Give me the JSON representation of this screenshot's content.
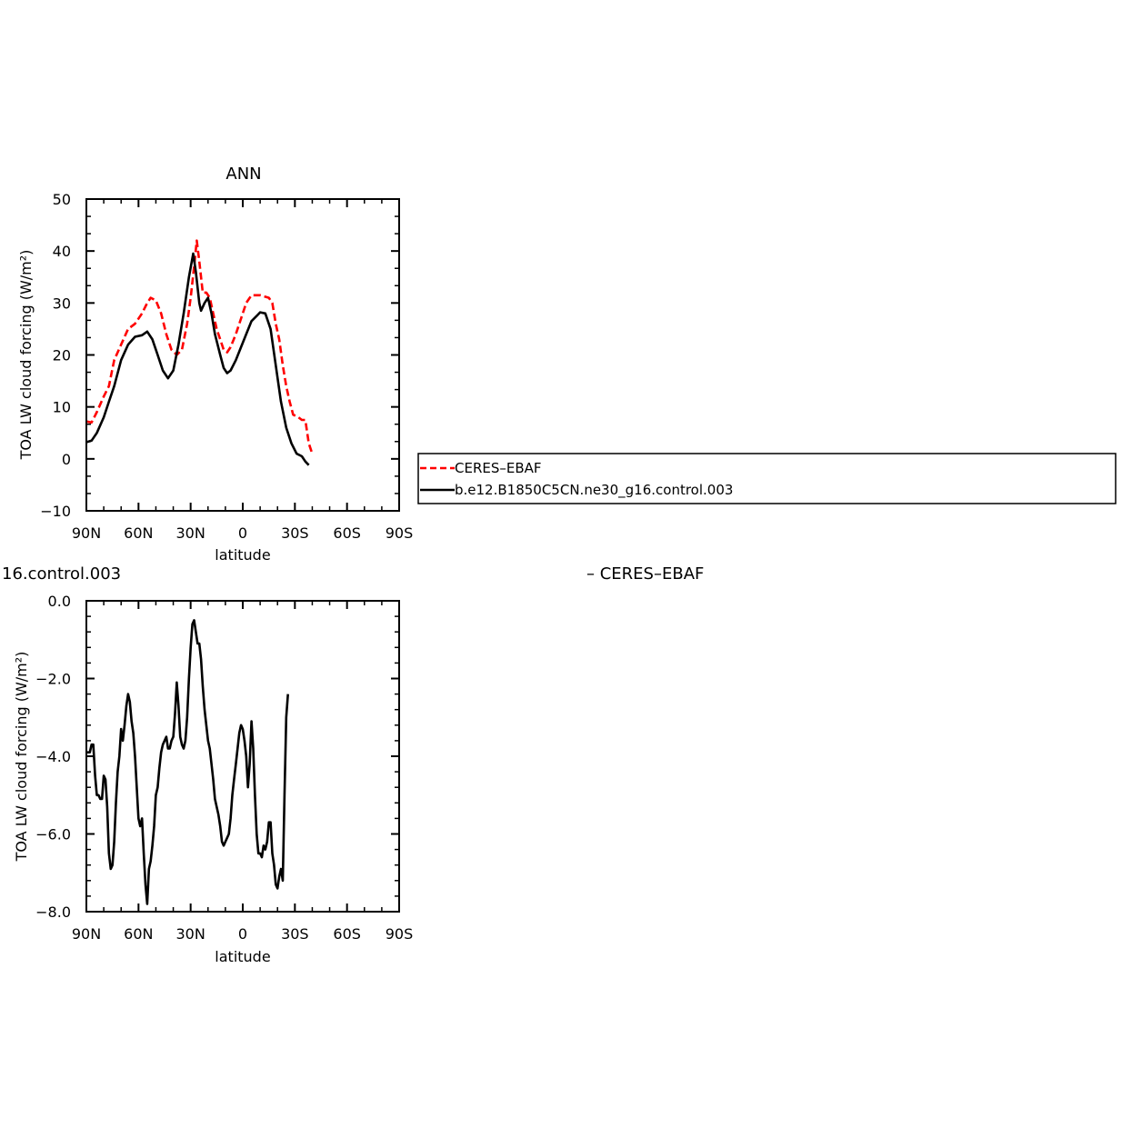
{
  "top_title": "ANN",
  "bottom_title_fragment": "16.control.003",
  "bottom_title_suffix": "– CERES–EBAF",
  "chart_data": [
    {
      "type": "line",
      "title": "ANN",
      "xlabel": "latitude",
      "ylabel": "TOA LW cloud forcing (W/m²)",
      "xlim": [
        90,
        -90
      ],
      "ylim": [
        -10,
        50
      ],
      "x_ticks": [
        90,
        60,
        30,
        0,
        -30,
        -60,
        -90
      ],
      "x_tick_labels": [
        "90N",
        "60N",
        "30N",
        "0",
        "30S",
        "60S",
        "90S"
      ],
      "y_ticks": [
        -10,
        0,
        10,
        20,
        30,
        40,
        50
      ],
      "y_tick_labels": [
        "−10",
        "0",
        "10",
        "20",
        "30",
        "40",
        "50"
      ],
      "grid": false,
      "legend": "right",
      "series": [
        {
          "name": "CERES–EBAF",
          "color": "#ff0000",
          "dash": "dashed",
          "points": [
            [
              90,
              7.2
            ],
            [
              87,
              7
            ],
            [
              84,
              9
            ],
            [
              80,
              12
            ],
            [
              77,
              14
            ],
            [
              74,
              19
            ],
            [
              70,
              22
            ],
            [
              66,
              25
            ],
            [
              62,
              26
            ],
            [
              58,
              28
            ],
            [
              55,
              30
            ],
            [
              53,
              31
            ],
            [
              50,
              30.5
            ],
            [
              47,
              28
            ],
            [
              44,
              24
            ],
            [
              41,
              21
            ],
            [
              38,
              20
            ],
            [
              35,
              21
            ],
            [
              32,
              26
            ],
            [
              30,
              31
            ],
            [
              28,
              37
            ],
            [
              26.5,
              42
            ],
            [
              25,
              38
            ],
            [
              23,
              32
            ],
            [
              21,
              32
            ],
            [
              19,
              31
            ],
            [
              17,
              28
            ],
            [
              15,
              25
            ],
            [
              13,
              23
            ],
            [
              11,
              21
            ],
            [
              9,
              20.5
            ],
            [
              7,
              21.5
            ],
            [
              4,
              24
            ],
            [
              1,
              27
            ],
            [
              -2,
              30
            ],
            [
              -5,
              31.5
            ],
            [
              -10,
              31.5
            ],
            [
              -15,
              31
            ],
            [
              -17,
              30
            ],
            [
              -19,
              26
            ],
            [
              -21,
              23
            ],
            [
              -23,
              18
            ],
            [
              -25,
              14
            ],
            [
              -27,
              11
            ],
            [
              -29,
              8.5
            ],
            [
              -32,
              8
            ],
            [
              -34,
              7.5
            ],
            [
              -36,
              7.5
            ],
            [
              -38,
              3
            ],
            [
              -40,
              1
            ]
          ]
        },
        {
          "name": "b.e12.B1850C5CN.ne30_g16.control.003",
          "color": "#000000",
          "dash": "solid",
          "points": [
            [
              90,
              3.2
            ],
            [
              87,
              3.5
            ],
            [
              84,
              5
            ],
            [
              80,
              8
            ],
            [
              77,
              11
            ],
            [
              74,
              14
            ],
            [
              70,
              19
            ],
            [
              66,
              22
            ],
            [
              62,
              23.5
            ],
            [
              58,
              23.8
            ],
            [
              55,
              24.5
            ],
            [
              52,
              23
            ],
            [
              49,
              20
            ],
            [
              46,
              17
            ],
            [
              43,
              15.5
            ],
            [
              40,
              17
            ],
            [
              37,
              22
            ],
            [
              34,
              28
            ],
            [
              31,
              35
            ],
            [
              28.5,
              39.5
            ],
            [
              27,
              36
            ],
            [
              25,
              30
            ],
            [
              24,
              28.5
            ],
            [
              22,
              30
            ],
            [
              20,
              31
            ],
            [
              18,
              28
            ],
            [
              16,
              24
            ],
            [
              13,
              20
            ],
            [
              11,
              17.5
            ],
            [
              9,
              16.5
            ],
            [
              7,
              17
            ],
            [
              4,
              19
            ],
            [
              1,
              21.5
            ],
            [
              -2,
              24
            ],
            [
              -5,
              26.5
            ],
            [
              -8,
              27.5
            ],
            [
              -10,
              28.2
            ],
            [
              -13,
              28
            ],
            [
              -16,
              25
            ],
            [
              -19,
              18
            ],
            [
              -22,
              11
            ],
            [
              -25,
              6
            ],
            [
              -28,
              3
            ],
            [
              -31,
              1
            ],
            [
              -34,
              0.5
            ],
            [
              -36,
              -0.5
            ],
            [
              -38,
              -1.2
            ]
          ]
        }
      ]
    },
    {
      "type": "line",
      "title": "16.control.003 – CERES–EBAF",
      "xlabel": "latitude",
      "ylabel": "TOA LW cloud forcing (W/m²)",
      "xlim": [
        90,
        -90
      ],
      "ylim": [
        -8,
        0
      ],
      "x_ticks": [
        90,
        60,
        30,
        0,
        -30,
        -60,
        -90
      ],
      "x_tick_labels": [
        "90N",
        "60N",
        "30N",
        "0",
        "30S",
        "60S",
        "90S"
      ],
      "y_ticks": [
        -8,
        -6,
        -4,
        -2,
        0
      ],
      "y_tick_labels": [
        "−8.0",
        "−6.0",
        "−4.0",
        "−2.0",
        "0.0"
      ],
      "grid": false,
      "series": [
        {
          "color": "#000000",
          "dash": "solid",
          "points": [
            [
              90,
              -3.9
            ],
            [
              88,
              -3.9
            ],
            [
              87,
              -3.7
            ],
            [
              86,
              -3.7
            ],
            [
              85,
              -4.5
            ],
            [
              84,
              -5
            ],
            [
              83,
              -5
            ],
            [
              82,
              -5.1
            ],
            [
              81,
              -5.1
            ],
            [
              80,
              -4.5
            ],
            [
              79,
              -4.6
            ],
            [
              78,
              -5.3
            ],
            [
              77,
              -6.5
            ],
            [
              76,
              -6.9
            ],
            [
              75,
              -6.8
            ],
            [
              74,
              -6.2
            ],
            [
              73,
              -5.2
            ],
            [
              72,
              -4.4
            ],
            [
              71,
              -4.0
            ],
            [
              70,
              -3.3
            ],
            [
              69,
              -3.6
            ],
            [
              68,
              -3.2
            ],
            [
              67,
              -2.7
            ],
            [
              66,
              -2.4
            ],
            [
              65,
              -2.6
            ],
            [
              64,
              -3.1
            ],
            [
              63,
              -3.4
            ],
            [
              62,
              -4.0
            ],
            [
              61,
              -4.8
            ],
            [
              60,
              -5.6
            ],
            [
              59,
              -5.8
            ],
            [
              58,
              -5.6
            ],
            [
              57,
              -6.5
            ],
            [
              56,
              -7.3
            ],
            [
              55,
              -7.8
            ],
            [
              54,
              -6.9
            ],
            [
              53,
              -6.7
            ],
            [
              52,
              -6.3
            ],
            [
              51,
              -5.8
            ],
            [
              50,
              -5.0
            ],
            [
              49,
              -4.8
            ],
            [
              48,
              -4.3
            ],
            [
              47,
              -3.9
            ],
            [
              46,
              -3.7
            ],
            [
              45,
              -3.6
            ],
            [
              44,
              -3.5
            ],
            [
              43,
              -3.8
            ],
            [
              42,
              -3.8
            ],
            [
              41,
              -3.6
            ],
            [
              40,
              -3.5
            ],
            [
              39,
              -2.9
            ],
            [
              38,
              -2.1
            ],
            [
              37,
              -2.7
            ],
            [
              36,
              -3.5
            ],
            [
              35,
              -3.7
            ],
            [
              34,
              -3.8
            ],
            [
              33,
              -3.6
            ],
            [
              32,
              -3.0
            ],
            [
              31,
              -2.0
            ],
            [
              30,
              -1.2
            ],
            [
              29,
              -0.6
            ],
            [
              28,
              -0.5
            ],
            [
              27,
              -0.8
            ],
            [
              26,
              -1.1
            ],
            [
              25,
              -1.1
            ],
            [
              24,
              -1.5
            ],
            [
              23,
              -2.2
            ],
            [
              22,
              -2.8
            ],
            [
              21,
              -3.2
            ],
            [
              20,
              -3.6
            ],
            [
              19,
              -3.8
            ],
            [
              18,
              -4.2
            ],
            [
              17,
              -4.6
            ],
            [
              16,
              -5.1
            ],
            [
              15,
              -5.3
            ],
            [
              14,
              -5.5
            ],
            [
              13,
              -5.8
            ],
            [
              12,
              -6.2
            ],
            [
              11,
              -6.3
            ],
            [
              10,
              -6.2
            ],
            [
              9,
              -6.1
            ],
            [
              8,
              -6.0
            ],
            [
              7,
              -5.6
            ],
            [
              6,
              -5.0
            ],
            [
              5,
              -4.6
            ],
            [
              4,
              -4.2
            ],
            [
              3,
              -3.8
            ],
            [
              2,
              -3.4
            ],
            [
              1,
              -3.2
            ],
            [
              0,
              -3.3
            ],
            [
              -1,
              -3.6
            ],
            [
              -2,
              -4.0
            ],
            [
              -3,
              -4.8
            ],
            [
              -4,
              -4.2
            ],
            [
              -5,
              -3.1
            ],
            [
              -6,
              -3.8
            ],
            [
              -7,
              -5.0
            ],
            [
              -8,
              -6.0
            ],
            [
              -9,
              -6.5
            ],
            [
              -10,
              -6.5
            ],
            [
              -11,
              -6.6
            ],
            [
              -12,
              -6.3
            ],
            [
              -13,
              -6.4
            ],
            [
              -14,
              -6.2
            ],
            [
              -15,
              -5.7
            ],
            [
              -16,
              -5.7
            ],
            [
              -17,
              -6.5
            ],
            [
              -18,
              -6.8
            ],
            [
              -19,
              -7.3
            ],
            [
              -20,
              -7.4
            ],
            [
              -21,
              -7.1
            ],
            [
              -22,
              -6.9
            ],
            [
              -23,
              -7.2
            ],
            [
              -24,
              -5.0
            ],
            [
              -25,
              -3.0
            ],
            [
              -26,
              -2.4
            ]
          ]
        }
      ]
    }
  ],
  "legend": {
    "items": [
      {
        "label": "CERES–EBAF",
        "color": "#ff0000",
        "dash": "dashed"
      },
      {
        "label": "b.e12.B1850C5CN.ne30_g16.control.003",
        "color": "#000000",
        "dash": "solid"
      }
    ]
  }
}
